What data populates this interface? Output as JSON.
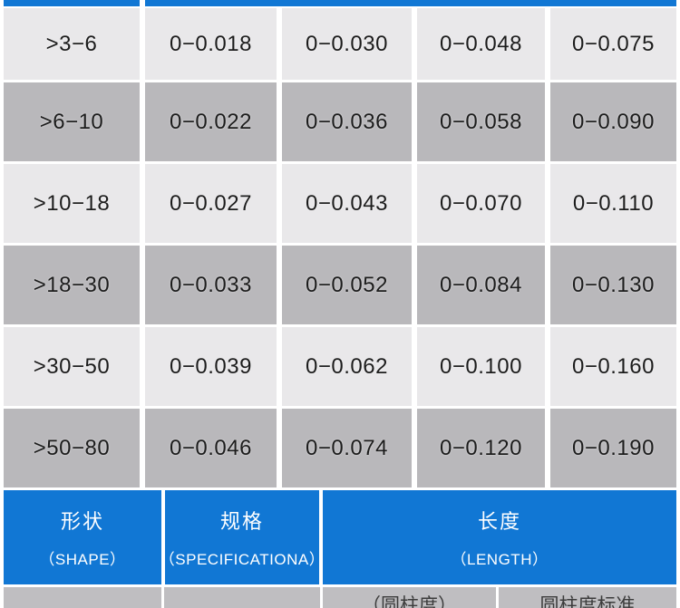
{
  "colors": {
    "accent_blue": "#1177d4",
    "row_light": "#e9e8ea",
    "row_dark": "#b9b8bb",
    "bottom_row_gray": "#bfbec1",
    "text_dark": "#1c1c1c",
    "header_text": "#ffffff"
  },
  "tolerance_table": {
    "description": "Size-range rows with tolerance bands (values in mm), upper part of table cut off at top of screenshot",
    "rows": [
      {
        "range": ">3−6",
        "values": [
          "0−0.018",
          "0−0.030",
          "0−0.048",
          "0−0.075"
        ]
      },
      {
        "range": ">6−10",
        "values": [
          "0−0.022",
          "0−0.036",
          "0−0.058",
          "0−0.090"
        ]
      },
      {
        "range": ">10−18",
        "values": [
          "0−0.027",
          "0−0.043",
          "0−0.070",
          "0−0.110"
        ]
      },
      {
        "range": ">18−30",
        "values": [
          "0−0.033",
          "0−0.052",
          "0−0.084",
          "0−0.130"
        ]
      },
      {
        "range": ">30−50",
        "values": [
          "0−0.039",
          "0−0.062",
          "0−0.100",
          "0−0.160"
        ]
      },
      {
        "range": ">50−80",
        "values": [
          "0−0.046",
          "0−0.074",
          "0−0.120",
          "0−0.190"
        ]
      }
    ]
  },
  "spec_header": {
    "columns": [
      {
        "zh": "形状",
        "en": "（SHAPE）"
      },
      {
        "zh": "规格",
        "en": "（SPECIFICATIONA）"
      },
      {
        "zh": "长度",
        "en": "（LENGTH）"
      }
    ]
  },
  "partial_row": {
    "description": "Row cut off at bottom edge of screenshot; only glyph tops visible",
    "cells": [
      "",
      "",
      "（圆柱度）",
      "圆柱度标准"
    ]
  }
}
